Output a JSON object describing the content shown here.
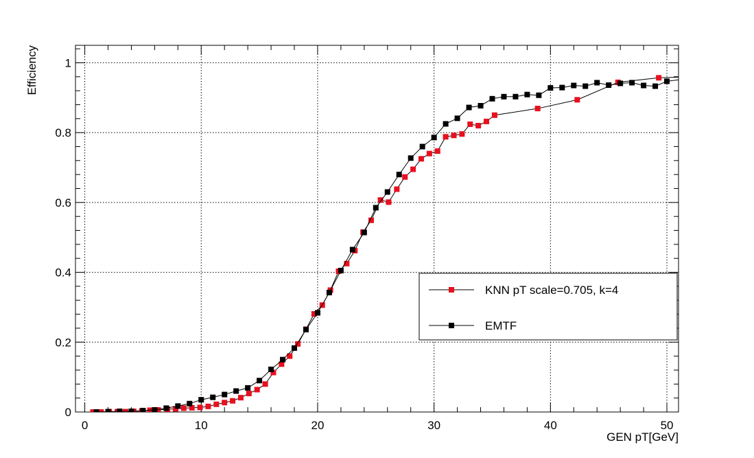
{
  "chart_data": {
    "type": "line",
    "title": "",
    "xlabel": "GEN pT[GeV]",
    "ylabel": "Efficiency",
    "xlim": [
      -0.8,
      51
    ],
    "ylim": [
      0,
      1.05
    ],
    "xticks": [
      0,
      10,
      20,
      30,
      40,
      50
    ],
    "xtick_labels": [
      "0",
      "10",
      "20",
      "30",
      "40",
      "50"
    ],
    "yticks": [
      0,
      0.2,
      0.4,
      0.6,
      0.8,
      1
    ],
    "ytick_labels": [
      "0",
      "0.2",
      "0.4",
      "0.6",
      "0.8",
      "1"
    ],
    "grid": true,
    "legend_position": "right",
    "series": [
      {
        "name": "KNN pT scale=0.705, k=4",
        "color": "#e8101e",
        "marker": "square",
        "x": [
          0.7,
          1.4,
          2.1,
          2.8,
          3.5,
          4.2,
          4.9,
          5.6,
          6.3,
          7.1,
          7.8,
          8.5,
          9.2,
          9.9,
          10.6,
          11.3,
          12.0,
          12.7,
          13.4,
          14.1,
          14.8,
          15.5,
          16.2,
          16.9,
          17.6,
          18.3,
          19.0,
          19.7,
          20.4,
          21.1,
          21.8,
          22.5,
          23.2,
          23.9,
          24.6,
          25.4,
          26.1,
          26.8,
          27.5,
          28.2,
          28.9,
          29.6,
          30.3,
          31.0,
          31.7,
          32.4,
          33.1,
          33.8,
          34.5,
          35.2,
          38.9,
          42.3,
          45.8,
          49.3
        ],
        "y": [
          0.0,
          0.0,
          0.001,
          0.001,
          0.001,
          0.002,
          0.003,
          0.005,
          0.006,
          0.008,
          0.009,
          0.011,
          0.012,
          0.013,
          0.016,
          0.022,
          0.027,
          0.032,
          0.041,
          0.053,
          0.064,
          0.08,
          0.113,
          0.137,
          0.16,
          0.195,
          0.237,
          0.281,
          0.306,
          0.349,
          0.403,
          0.425,
          0.462,
          0.515,
          0.549,
          0.607,
          0.601,
          0.638,
          0.673,
          0.695,
          0.725,
          0.74,
          0.747,
          0.788,
          0.792,
          0.796,
          0.824,
          0.82,
          0.832,
          0.85,
          0.869,
          0.894,
          0.944,
          0.957
        ]
      },
      {
        "name": "EMTF",
        "color": "#000000",
        "marker": "square",
        "x": [
          1,
          2,
          3,
          4,
          5,
          6,
          7,
          8,
          9,
          10,
          11,
          12,
          13,
          14,
          15,
          16,
          17,
          18,
          19,
          20,
          21,
          22,
          23,
          24,
          25,
          26,
          27,
          28,
          29,
          30,
          31,
          32,
          33,
          34,
          35,
          36,
          37,
          38,
          39,
          40,
          41,
          42,
          43,
          44,
          45,
          46,
          47,
          48,
          49,
          50
        ],
        "y": [
          0.0,
          0.001,
          0.002,
          0.002,
          0.004,
          0.006,
          0.011,
          0.017,
          0.024,
          0.035,
          0.042,
          0.05,
          0.06,
          0.069,
          0.09,
          0.122,
          0.15,
          0.183,
          0.236,
          0.284,
          0.342,
          0.405,
          0.465,
          0.514,
          0.585,
          0.63,
          0.68,
          0.727,
          0.76,
          0.786,
          0.825,
          0.841,
          0.872,
          0.877,
          0.897,
          0.903,
          0.903,
          0.909,
          0.907,
          0.928,
          0.929,
          0.935,
          0.933,
          0.943,
          0.936,
          0.941,
          0.943,
          0.935,
          0.933,
          0.947
        ]
      }
    ]
  }
}
